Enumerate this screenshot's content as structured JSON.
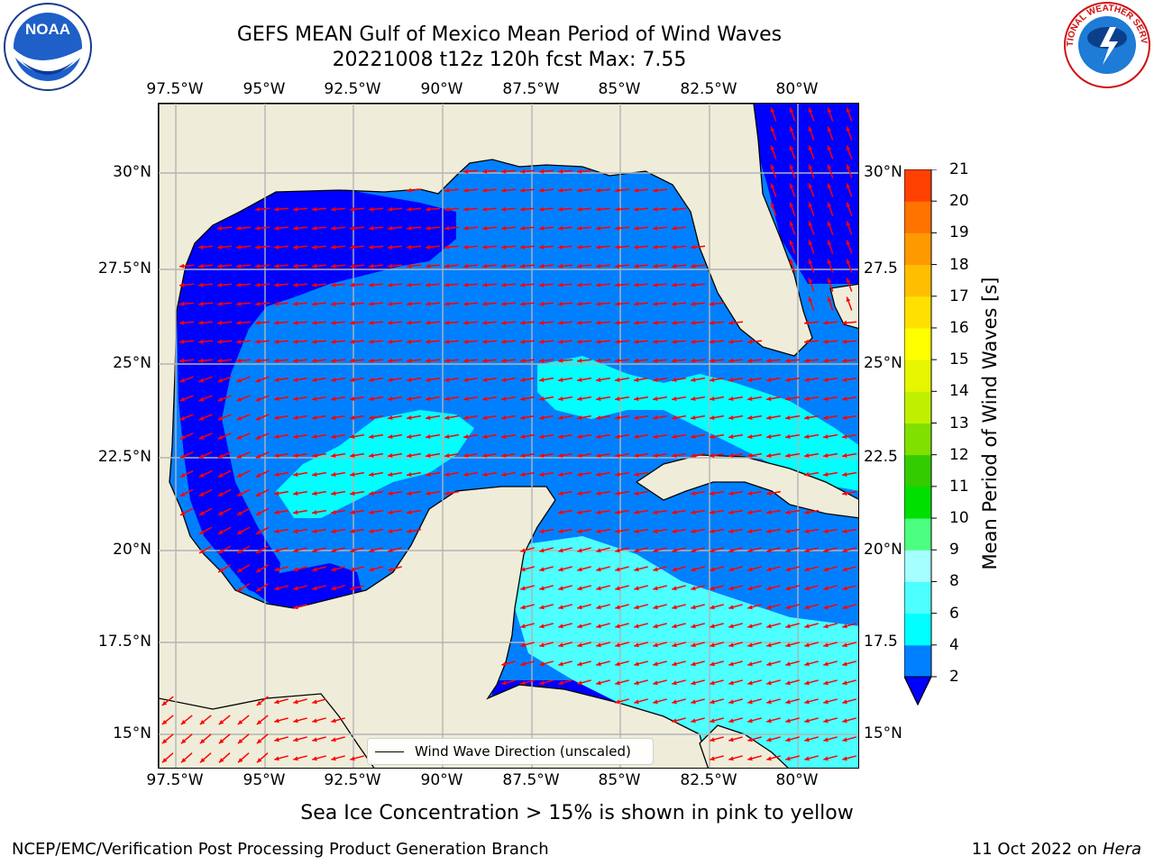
{
  "header": {
    "title_line1": "GEFS MEAN Gulf of Mexico Mean Period of Wind Waves",
    "title_line2": "20221008 t12z 120h fcst   Max: 7.55"
  },
  "logos": {
    "noaa_wordmark": "NOAA",
    "noaa_ring_text": "NATIONAL OCEANIC AND ATMOSPHERIC ADMINISTRATION · U.S. DEPARTMENT OF COMMERCE",
    "nws_ring_text": "NATIONAL WEATHER SERVICE"
  },
  "map": {
    "lon_labels": [
      "97.5°W",
      "95°W",
      "92.5°W",
      "90°W",
      "87.5°W",
      "85°W",
      "82.5°W",
      "80°W"
    ],
    "lat_labels_left": [
      "30°N",
      "27.5°N",
      "25°N",
      "22.5°N",
      "20°N",
      "17.5°N",
      "15°N"
    ],
    "lat_labels_right": [
      "30°N",
      "27.5",
      "25°N",
      "22.5",
      "20°N",
      "17.5",
      "15°N"
    ],
    "lon_range": [
      -98,
      -78.3
    ],
    "lat_range": [
      14,
      31.8
    ],
    "colors": {
      "land": "#efedd9",
      "coast": "#000000",
      "grid": "#b4b4b4",
      "vector": "#ff0000",
      "bin_2_4": "#0080ff",
      "bin_below_2": "#0000ff",
      "bin_4_6": "#00ffff",
      "bin_6_8": "#4dffff"
    },
    "legend_label": "Wind Wave Direction (unscaled)"
  },
  "colorbar": {
    "title": "Mean Period of Wind Waves [s]",
    "ticks": [
      "2",
      "4",
      "6",
      "8",
      "9",
      "10",
      "11",
      "12",
      "13",
      "14",
      "15",
      "16",
      "17",
      "18",
      "19",
      "20",
      "21"
    ],
    "colors": [
      "#0080ff",
      "#00ffff",
      "#4dffff",
      "#a6ffff",
      "#4dff80",
      "#00e000",
      "#33cc00",
      "#80e000",
      "#c0f000",
      "#e6f500",
      "#ffff00",
      "#ffe000",
      "#ffbf00",
      "#ff9900",
      "#ff7300",
      "#ff4000",
      "#ff0000"
    ]
  },
  "footer": {
    "ice_note": "Sea Ice Concentration > 15% is shown in pink to yellow",
    "left": "NCEP/EMC/Verification Post Processing Product Generation Branch",
    "right_date": "11 Oct 2022 on",
    "right_host": "Hera"
  }
}
